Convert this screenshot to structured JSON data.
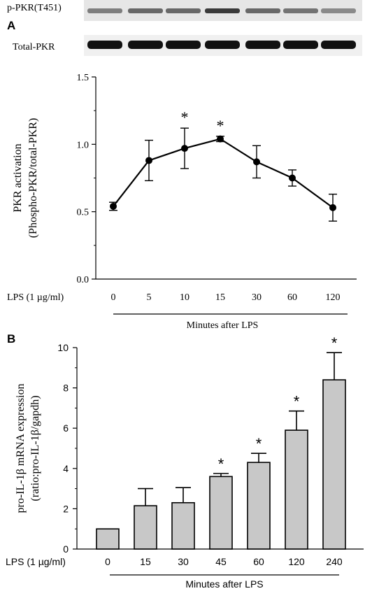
{
  "panel_a": {
    "letter": "A",
    "blot_labels": [
      "p-PKR(T451)",
      "Total-PKR"
    ],
    "treatment_label": "LPS (1 µg/ml)",
    "x_axis_title": "Minutes after LPS"
  },
  "panel_b": {
    "letter": "B",
    "treatment_label": "LPS (1 µg/ml)",
    "x_axis_title": "Minutes after LPS"
  },
  "chart_data": [
    {
      "type": "line",
      "panel": "A",
      "ylabel_lines": [
        "PKR activation",
        "(Phospho-PKR/total-PKR)"
      ],
      "categories": [
        "0",
        "5",
        "10",
        "15",
        "30",
        "60",
        "120"
      ],
      "values": [
        0.54,
        0.88,
        0.97,
        1.04,
        0.87,
        0.75,
        0.53
      ],
      "errors": [
        0.03,
        0.15,
        0.15,
        0.02,
        0.12,
        0.06,
        0.1
      ],
      "significance": [
        "",
        "",
        "*",
        "*",
        "",
        "",
        ""
      ],
      "ylim": [
        0,
        1.5
      ],
      "yticks": [
        "0.0",
        "0.5",
        "1.0",
        "1.5"
      ],
      "grid": false,
      "color": "#000000"
    },
    {
      "type": "bar",
      "panel": "B",
      "ylabel_lines": [
        "pro-IL-1β mRNA expression",
        "(ratio:pro-IL-1β/gapdh)"
      ],
      "categories": [
        "0",
        "15",
        "30",
        "45",
        "60",
        "120",
        "240"
      ],
      "values": [
        1.0,
        2.15,
        2.3,
        3.6,
        4.3,
        5.9,
        8.4
      ],
      "errors": [
        0.0,
        0.85,
        0.75,
        0.15,
        0.45,
        0.95,
        1.35
      ],
      "significance": [
        "",
        "",
        "",
        "*",
        "*",
        "*",
        "*"
      ],
      "ylim": [
        0,
        10
      ],
      "yticks": [
        "0",
        "2",
        "4",
        "6",
        "8",
        "10"
      ],
      "grid": false,
      "bar_color": "#c8c8c8"
    }
  ]
}
